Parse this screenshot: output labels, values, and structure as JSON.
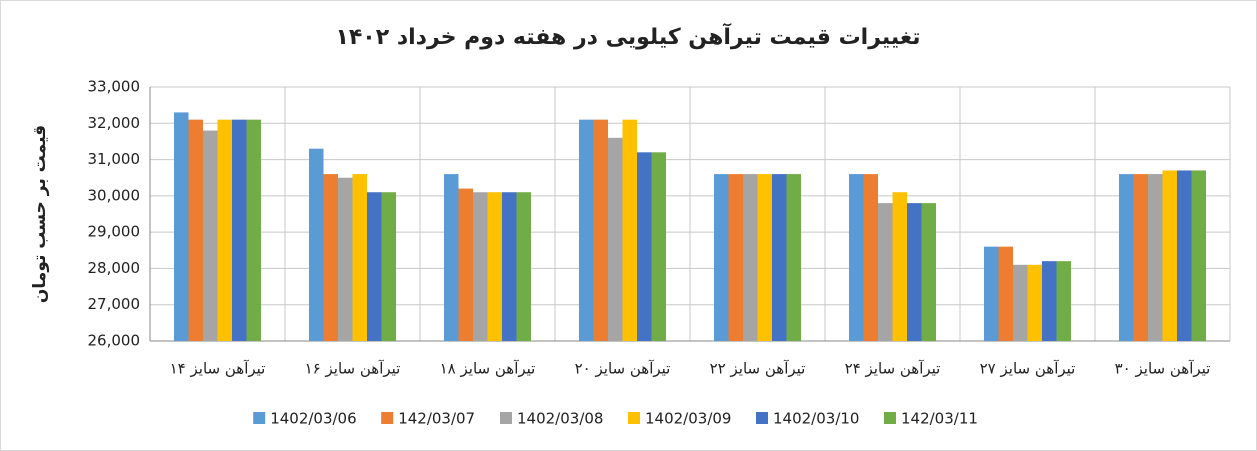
{
  "chart_data": {
    "type": "bar",
    "title": "تغییرات قیمت تیرآهن کیلویی در هفته دوم خرداد ۱۴۰۲",
    "y_label": "قیمت بر حسب تومان",
    "categories": [
      "تیرآهن سایز ۱۴",
      "تیرآهن سایز ۱۶",
      "تیرآهن سایز ۱۸",
      "تیرآهن سایز ۲۰",
      "تیرآهن سایز ۲۲",
      "تیرآهن سایز ۲۴",
      "تیرآهن سایز ۲۷",
      "تیرآهن سایز ۳۰"
    ],
    "series": [
      {
        "name": "1402/03/06",
        "color": "#5b9bd5",
        "values": [
          32300,
          31300,
          30600,
          32100,
          30600,
          30600,
          28600,
          30600
        ]
      },
      {
        "name": "142/03/07",
        "color": "#ed7d31",
        "values": [
          32100,
          30600,
          30200,
          32100,
          30600,
          30600,
          28600,
          30600
        ]
      },
      {
        "name": "1402/03/08",
        "color": "#a5a5a5",
        "values": [
          31800,
          30500,
          30100,
          31600,
          30600,
          29800,
          28100,
          30600
        ]
      },
      {
        "name": "1402/03/09",
        "color": "#ffc000",
        "values": [
          32100,
          30600,
          30100,
          32100,
          30600,
          30100,
          28100,
          30700
        ]
      },
      {
        "name": "1402/03/10",
        "color": "#4472c4",
        "values": [
          32100,
          30100,
          30100,
          31200,
          30600,
          29800,
          28200,
          30700
        ]
      },
      {
        "name": "142/03/11",
        "color": "#70ad47",
        "values": [
          32100,
          30100,
          30100,
          31200,
          30600,
          29800,
          28200,
          30700
        ]
      }
    ],
    "ylim": [
      26000,
      33000
    ],
    "yticks": [
      {
        "value": 26000,
        "label": "26,000"
      },
      {
        "value": 27000,
        "label": "27,000"
      },
      {
        "value": 28000,
        "label": "28,000"
      },
      {
        "value": 29000,
        "label": "29,000"
      },
      {
        "value": 30000,
        "label": "30,000"
      },
      {
        "value": 31000,
        "label": "31,000"
      },
      {
        "value": 32000,
        "label": "32,000"
      },
      {
        "value": 33000,
        "label": "33,000"
      }
    ],
    "grid": true,
    "legend": "bottom"
  }
}
